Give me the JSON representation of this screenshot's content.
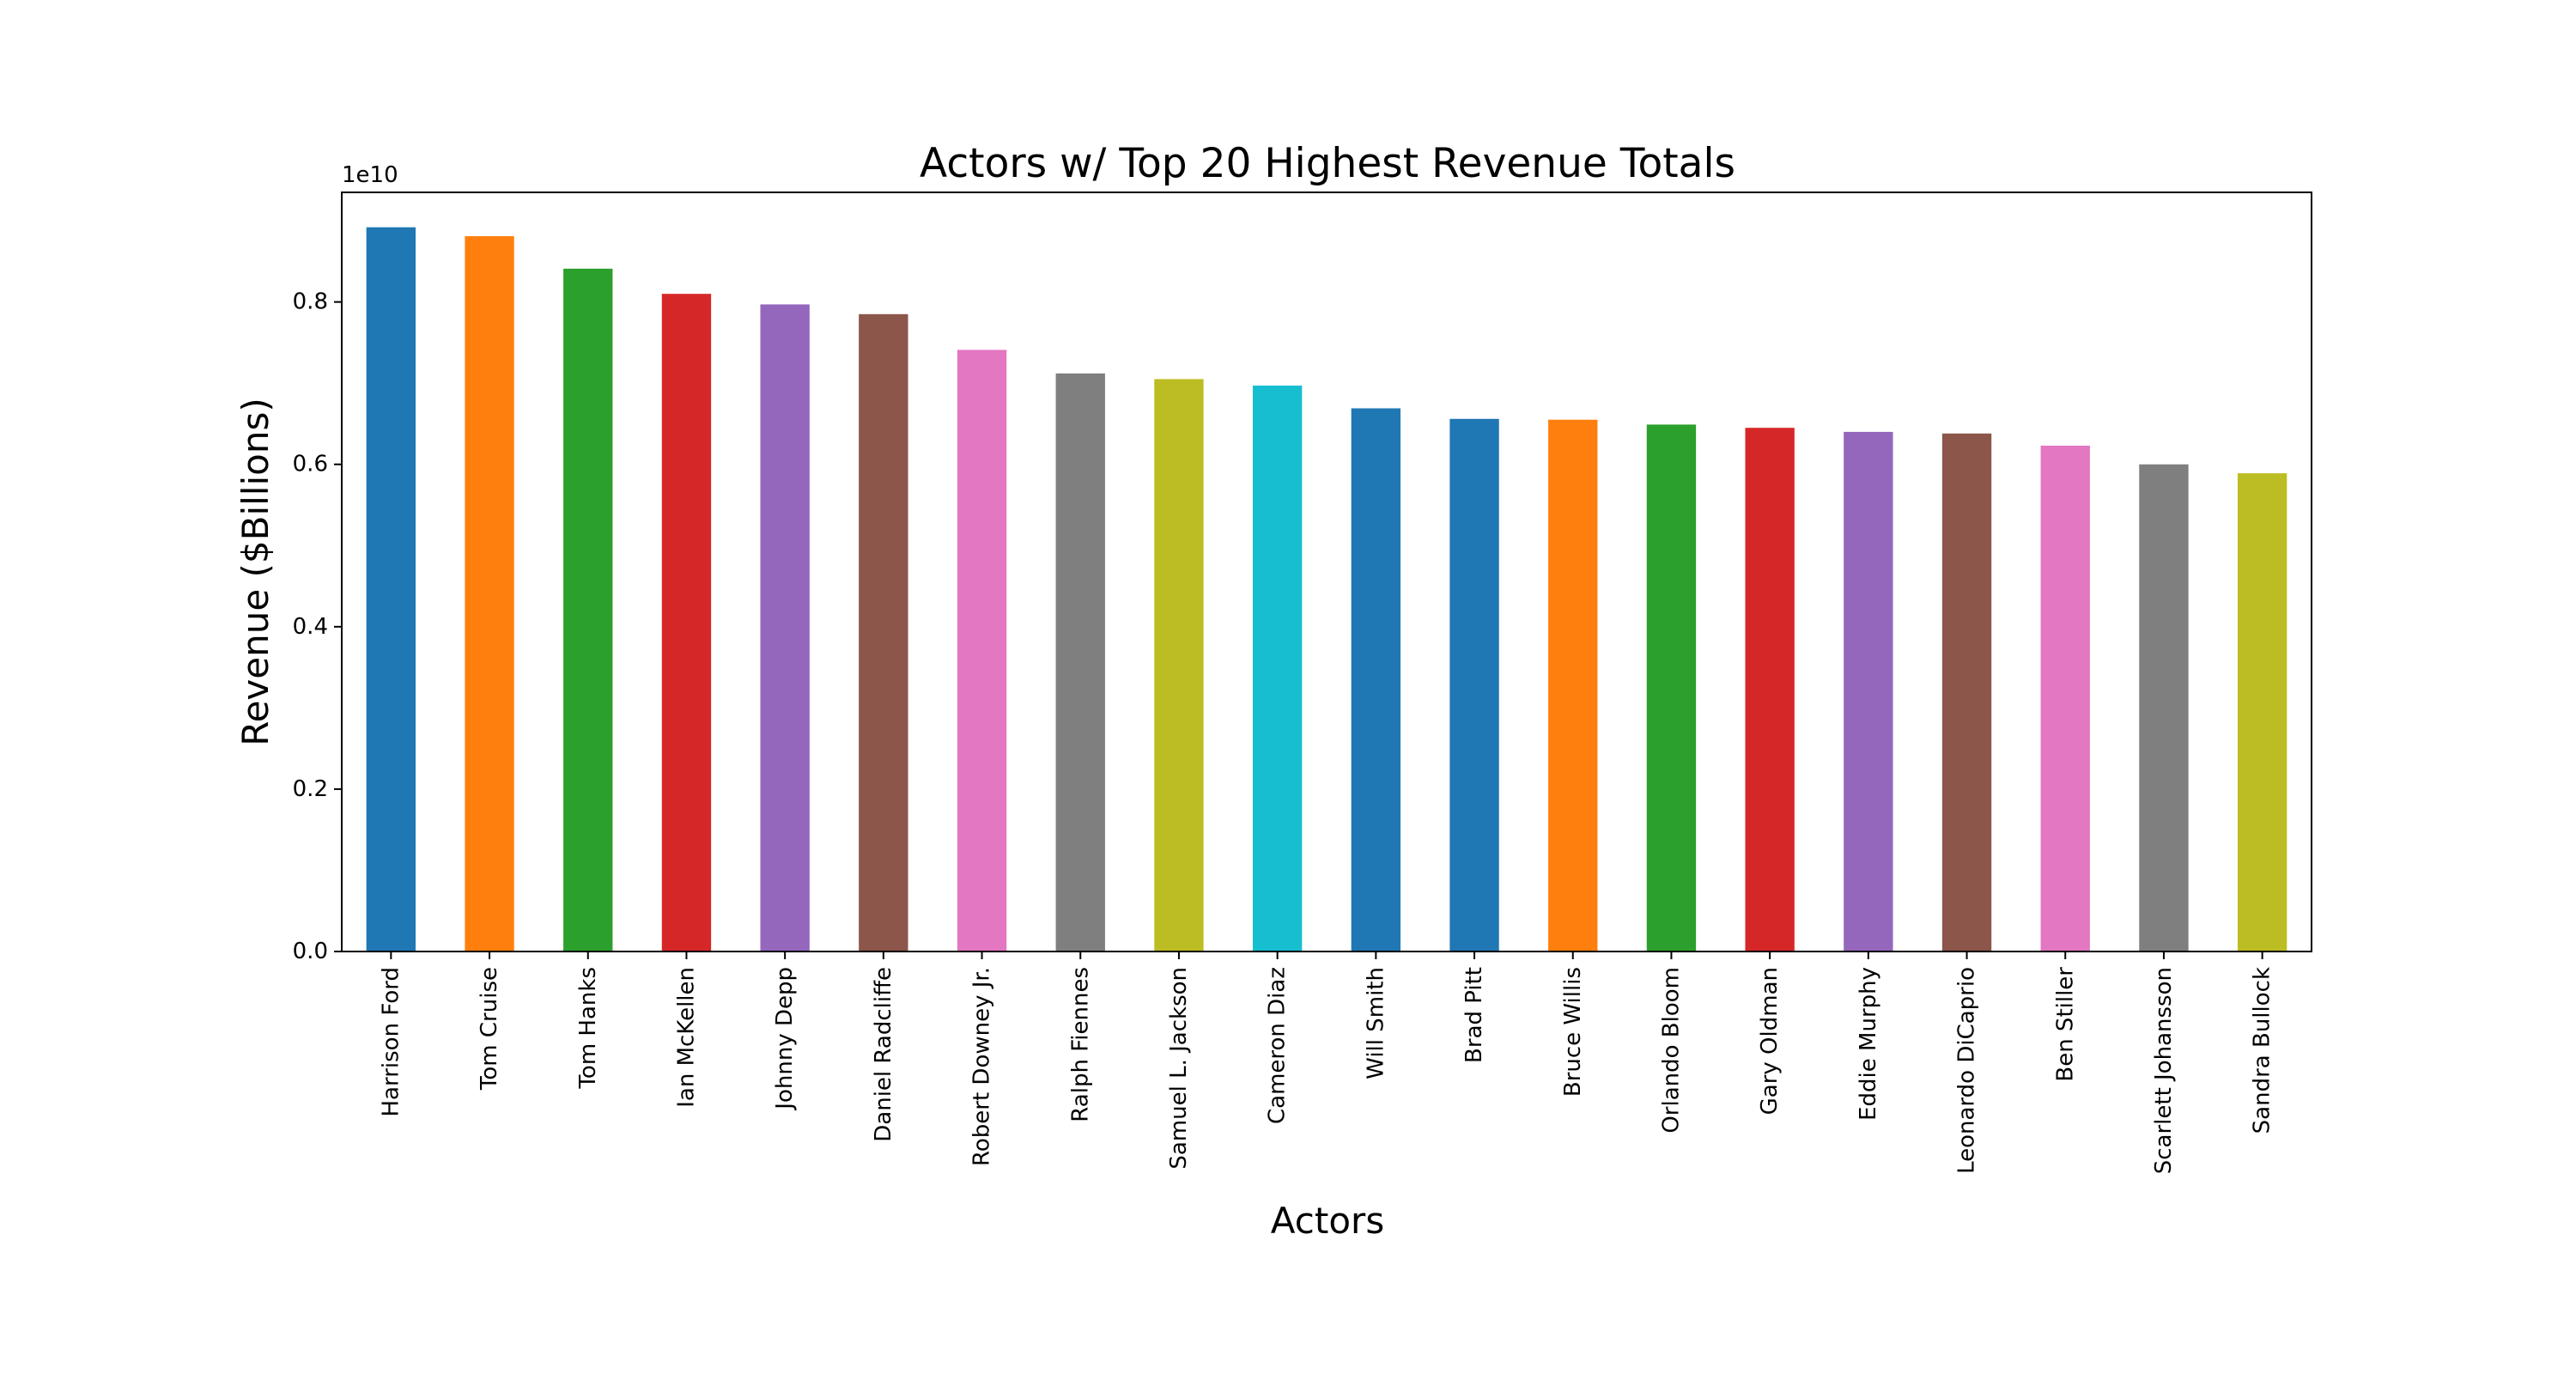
{
  "chart_data": {
    "type": "bar",
    "title": "Actors w/ Top 20 Highest Revenue Totals",
    "xlabel": "Actors",
    "ylabel": "Revenue ($Billions)",
    "y_offset_text": "1e10",
    "y_scale": 10000000000,
    "ylim": [
      0,
      0.935
    ],
    "yticks": [
      0.0,
      0.2,
      0.4,
      0.6,
      0.8
    ],
    "ytick_labels": [
      "0.0",
      "0.2",
      "0.4",
      "0.6",
      "0.8"
    ],
    "grid": false,
    "legend": "none",
    "categories": [
      "Harrison Ford",
      "Tom Cruise",
      "Tom Hanks",
      "Ian McKellen",
      "Johnny Depp",
      "Daniel Radcliffe",
      "Robert Downey Jr.",
      "Ralph Fiennes",
      "Samuel L. Jackson",
      "Cameron Diaz",
      "Will Smith",
      "Brad Pitt",
      "Bruce Willis",
      "Orlando Bloom",
      "Gary Oldman",
      "Eddie Murphy",
      "Leonardo DiCaprio",
      "Ben Stiller",
      "Scarlett Johansson",
      "Sandra Bullock"
    ],
    "values": [
      0.892,
      0.881,
      0.841,
      0.81,
      0.797,
      0.785,
      0.741,
      0.712,
      0.705,
      0.697,
      0.669,
      0.656,
      0.655,
      0.649,
      0.645,
      0.64,
      0.638,
      0.623,
      0.6,
      0.589
    ],
    "colors": [
      "#1f77b4",
      "#ff7f0e",
      "#2ca02c",
      "#d62728",
      "#9467bd",
      "#8c564b",
      "#e377c2",
      "#7f7f7f",
      "#bcbd22",
      "#17becf",
      "#1f77b4",
      "#1f77b4",
      "#ff7f0e",
      "#2ca02c",
      "#d62728",
      "#9467bd",
      "#8c564b",
      "#e377c2",
      "#7f7f7f",
      "#bcbd22"
    ]
  }
}
